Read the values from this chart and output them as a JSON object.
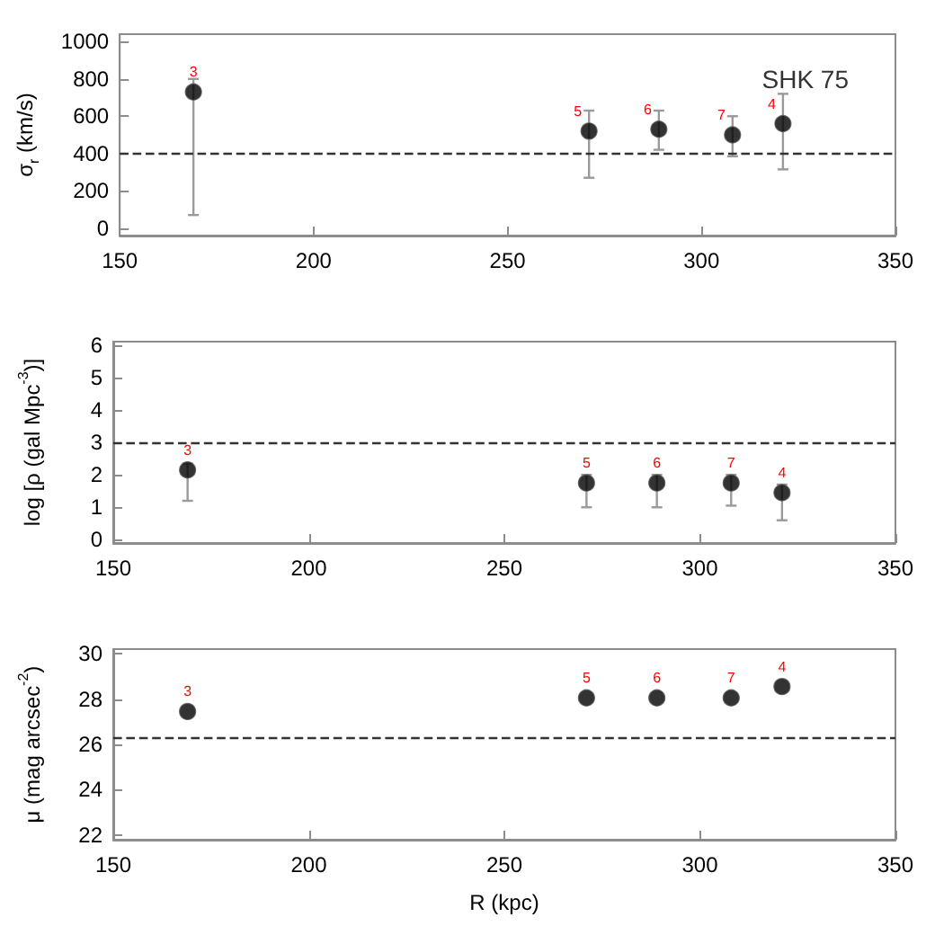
{
  "chart_data": [
    {
      "type": "scatter",
      "ylabel": "σ$_{r}$ (km/s)",
      "x": [
        169,
        271,
        289,
        308,
        321
      ],
      "values": [
        730,
        520,
        530,
        500,
        560
      ],
      "errors": [
        [
          70,
          800
        ],
        [
          270,
          630
        ],
        [
          420,
          630
        ],
        [
          385,
          600
        ],
        [
          315,
          720
        ]
      ],
      "color": "#000000",
      "marker": "circle",
      "xlim": [
        150,
        350
      ],
      "xticks": [
        150,
        200,
        250,
        300,
        350
      ],
      "ylim": [
        -40,
        1040
      ],
      "yticks": [
        0,
        200,
        400,
        600,
        800,
        1000
      ],
      "ref_lines": [
        {
          "axis": "y",
          "value": 400,
          "color": "#333333",
          "line_style": "dashed"
        }
      ],
      "annotations": [
        "SHK 75",
        {
          "text": "3",
          "x": 169,
          "y": 730
        },
        {
          "text": "5",
          "x": 271,
          "y": 520
        },
        {
          "text": "6",
          "x": 289,
          "y": 530
        },
        {
          "text": "7",
          "x": 308,
          "y": 500
        },
        {
          "text": "4",
          "x": 321,
          "y": 560
        }
      ]
    },
    {
      "type": "scatter",
      "ylabel": "log [ρ (gal Mpc$^{-3}$)]",
      "x": [
        169,
        271,
        289,
        308,
        321
      ],
      "values": [
        2.15,
        1.75,
        1.75,
        1.75,
        1.45
      ],
      "errors": [
        [
          1.2,
          2.35
        ],
        [
          1.0,
          2.0
        ],
        [
          1.0,
          2.0
        ],
        [
          1.05,
          2.0
        ],
        [
          0.6,
          1.7
        ]
      ],
      "color": "#000000",
      "marker": "circle",
      "xlim": [
        150,
        350
      ],
      "xticks": [
        150,
        200,
        250,
        300,
        350
      ],
      "ylim": [
        -0.1,
        6.1
      ],
      "yticks": [
        0,
        1,
        2,
        3,
        4,
        5,
        6
      ],
      "ref_lines": [
        {
          "axis": "y",
          "value": 3,
          "color": "#333333",
          "line_style": "dashed"
        }
      ],
      "annotations": [
        {
          "text": "3",
          "x": 169,
          "y": 2.15
        },
        {
          "text": "5",
          "x": 271,
          "y": 1.75
        },
        {
          "text": "6",
          "x": 289,
          "y": 1.75
        },
        {
          "text": "7",
          "x": 308,
          "y": 1.75
        },
        {
          "text": "4",
          "x": 321,
          "y": 1.45
        }
      ]
    },
    {
      "type": "scatter",
      "xlabel": "R (kpc)",
      "ylabel": "μ (mag arcsec$^{-2}$)",
      "x": [
        169,
        271,
        289,
        308,
        321
      ],
      "values": [
        27.45,
        28.05,
        28.05,
        28.05,
        28.55
      ],
      "color": "#000000",
      "marker": "circle",
      "xlim": [
        150,
        350
      ],
      "xticks": [
        150,
        200,
        250,
        300,
        350
      ],
      "ylim": [
        21.8,
        30.2
      ],
      "yticks": [
        22,
        24,
        26,
        28,
        30
      ],
      "ref_lines": [
        {
          "axis": "y",
          "value": 26.3,
          "color": "#333333",
          "line_style": "dashed"
        }
      ],
      "annotations": [
        {
          "text": "3",
          "x": 169,
          "y": 27.45
        },
        {
          "text": "5",
          "x": 271,
          "y": 28.05
        },
        {
          "text": "6",
          "x": 289,
          "y": 28.05
        },
        {
          "text": "7",
          "x": 308,
          "y": 28.05
        },
        {
          "text": "4",
          "x": 321,
          "y": 28.55
        }
      ]
    }
  ]
}
